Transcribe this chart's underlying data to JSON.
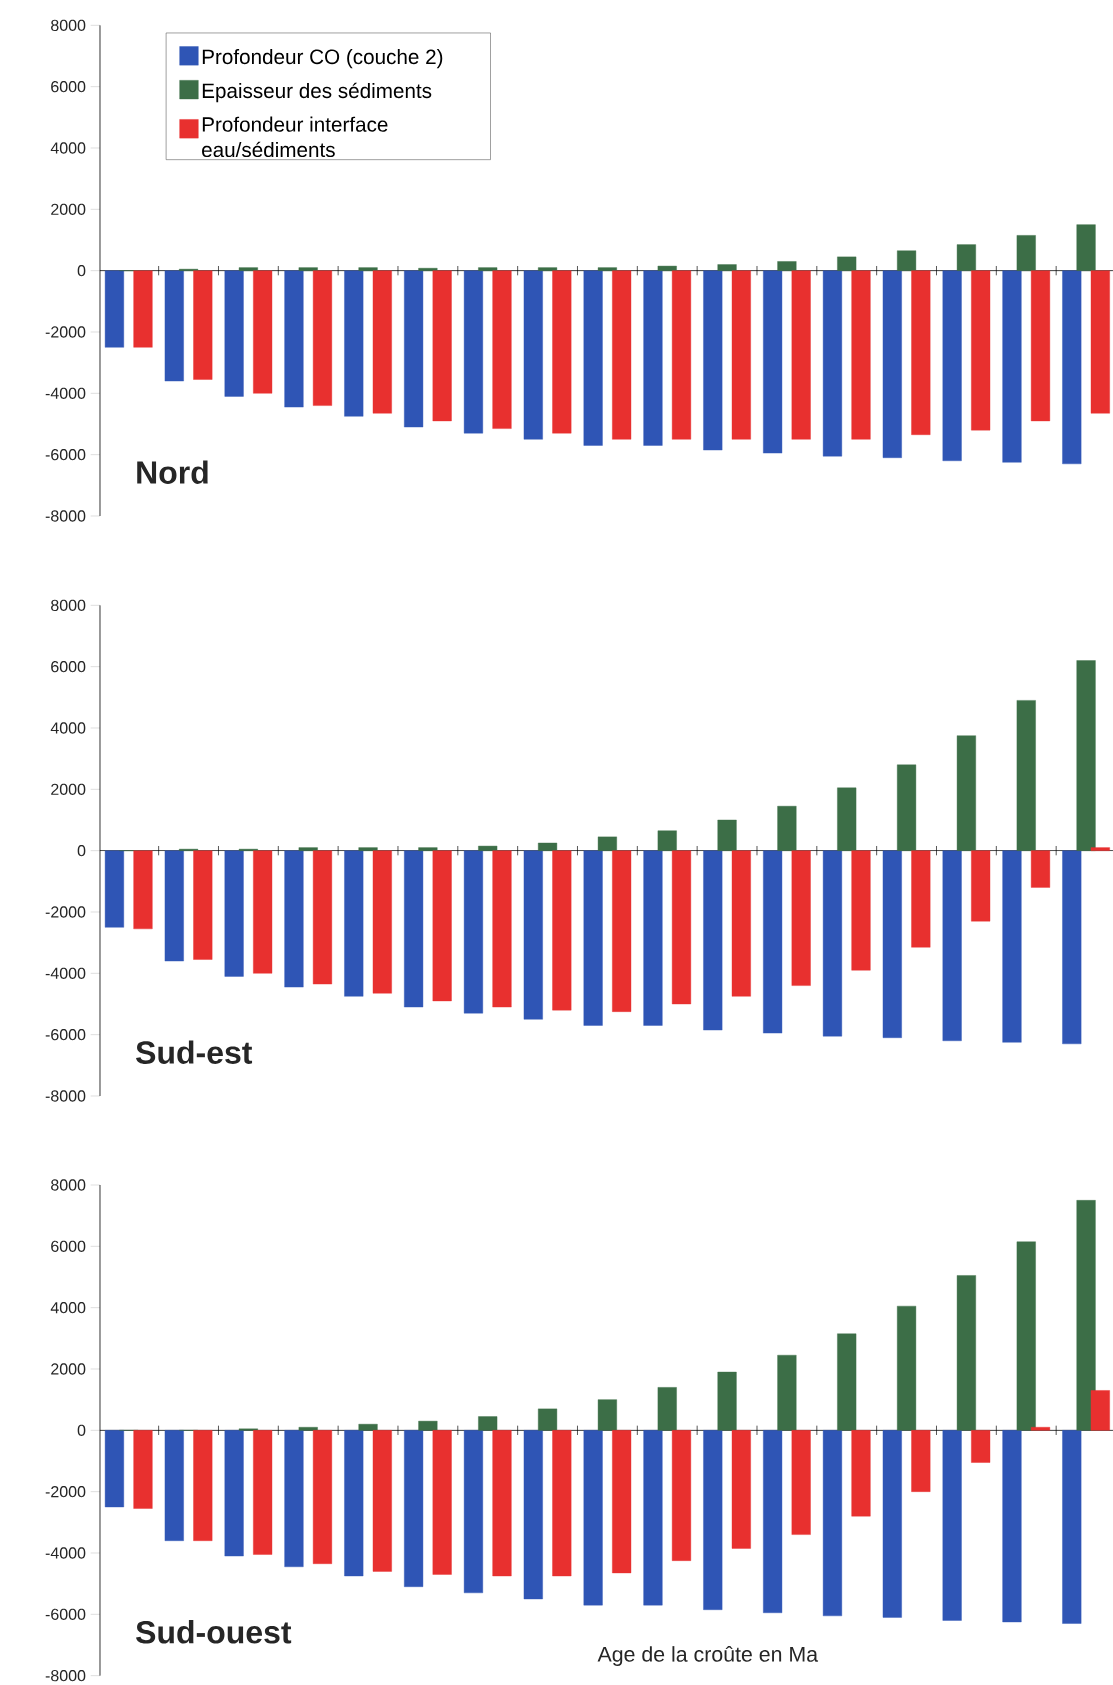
{
  "chart_data": [
    {
      "type": "bar",
      "title": "Nord",
      "categories": [
        null,
        null,
        null,
        null,
        null,
        null,
        null,
        null,
        null,
        null,
        null,
        null,
        null,
        null,
        null,
        null,
        null
      ],
      "series": [
        {
          "name": "Profondeur CO (couche 2)",
          "color": "#2f55b5",
          "values": [
            -2500,
            -3600,
            -4100,
            -4450,
            -4750,
            -5100,
            -5300,
            -5500,
            -5700,
            -5700,
            -5850,
            -5950,
            -6050,
            -6100,
            -6200,
            -6250,
            -6300
          ]
        },
        {
          "name": "Epaisseur des sédiments",
          "color": "#3c6e47",
          "values": [
            0,
            50,
            100,
            100,
            100,
            80,
            100,
            100,
            100,
            150,
            200,
            300,
            450,
            650,
            850,
            1150,
            1500
          ]
        },
        {
          "name": "Profondeur interface eau/sédiments",
          "color": "#e8302f",
          "values": [
            -2500,
            -3550,
            -4000,
            -4400,
            -4650,
            -4900,
            -5150,
            -5300,
            -5500,
            -5500,
            -5500,
            -5500,
            -5500,
            -5350,
            -5200,
            -4900,
            -4650
          ]
        }
      ],
      "ylim": [
        -8000,
        8000
      ],
      "yticks": [
        -8000,
        -6000,
        -4000,
        -2000,
        0,
        2000,
        4000,
        6000,
        8000
      ],
      "legend": "top left",
      "tick_labels": "y"
    },
    {
      "type": "bar",
      "title": "Sud-est",
      "categories": [
        null,
        null,
        null,
        null,
        null,
        null,
        null,
        null,
        null,
        null,
        null,
        null,
        null,
        null,
        null,
        null,
        null
      ],
      "series": [
        {
          "color": "#2f55b5",
          "values": [
            -2500,
            -3600,
            -4100,
            -4450,
            -4750,
            -5100,
            -5300,
            -5500,
            -5700,
            -5700,
            -5850,
            -5950,
            -6050,
            -6100,
            -6200,
            -6250,
            -6300
          ]
        },
        {
          "color": "#3c6e47",
          "values": [
            0,
            50,
            50,
            100,
            100,
            100,
            150,
            250,
            450,
            650,
            1000,
            1450,
            2050,
            2800,
            3750,
            4900,
            6200
          ]
        },
        {
          "color": "#e8302f",
          "values": [
            -2550,
            -3550,
            -4000,
            -4350,
            -4650,
            -4900,
            -5100,
            -5200,
            -5250,
            -5000,
            -4750,
            -4400,
            -3900,
            -3150,
            -2300,
            -1200,
            100
          ]
        }
      ],
      "ylim": [
        -8000,
        8000
      ],
      "yticks": [
        -8000,
        -6000,
        -4000,
        -2000,
        0,
        2000,
        4000,
        6000,
        8000
      ],
      "tick_labels": "y"
    },
    {
      "type": "bar",
      "title": "Sud-ouest",
      "xlabel": "Age de la croûte en Ma",
      "categories": [
        null,
        null,
        null,
        null,
        null,
        null,
        null,
        null,
        null,
        null,
        null,
        null,
        null,
        null,
        null,
        null,
        null
      ],
      "series": [
        {
          "color": "#2f55b5",
          "values": [
            -2500,
            -3600,
            -4100,
            -4450,
            -4750,
            -5100,
            -5300,
            -5500,
            -5700,
            -5700,
            -5850,
            -5950,
            -6050,
            -6100,
            -6200,
            -6250,
            -6300
          ]
        },
        {
          "color": "#3c6e47",
          "values": [
            0,
            0,
            50,
            100,
            200,
            300,
            450,
            700,
            1000,
            1400,
            1900,
            2450,
            3150,
            4050,
            5050,
            6150,
            7500
          ]
        },
        {
          "color": "#e8302f",
          "values": [
            -2550,
            -3600,
            -4050,
            -4350,
            -4600,
            -4700,
            -4750,
            -4750,
            -4650,
            -4250,
            -3850,
            -3400,
            -2800,
            -2000,
            -1050,
            100,
            1300
          ]
        }
      ],
      "ylim": [
        -8000,
        8000
      ],
      "yticks": [
        -8000,
        -6000,
        -4000,
        -2000,
        0,
        2000,
        4000,
        6000,
        8000
      ],
      "tick_labels": "y"
    }
  ]
}
